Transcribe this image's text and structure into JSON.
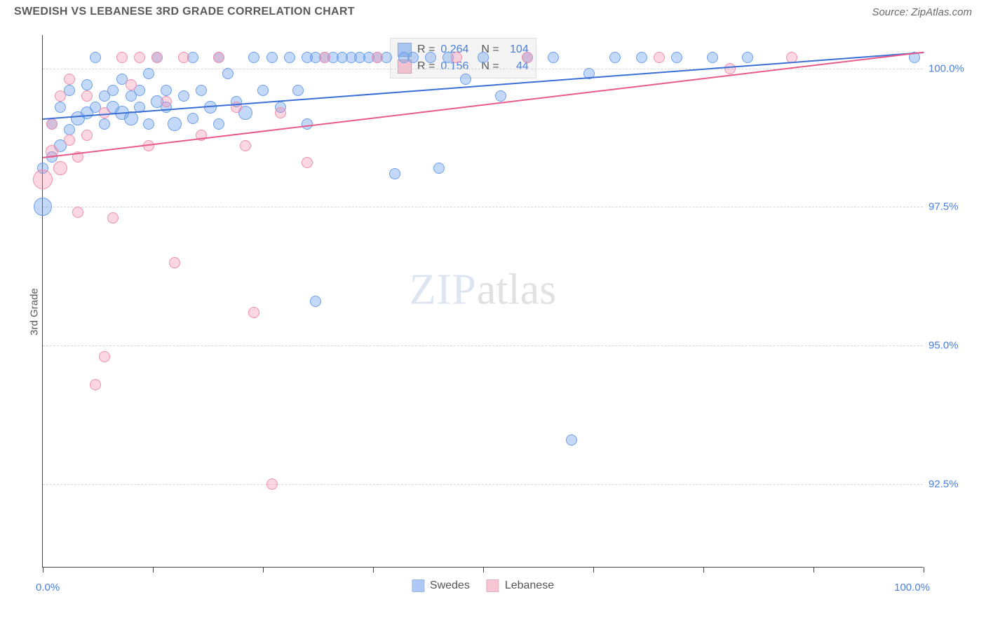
{
  "header": {
    "title": "SWEDISH VS LEBANESE 3RD GRADE CORRELATION CHART",
    "source": "Source: ZipAtlas.com"
  },
  "chart": {
    "type": "scatter",
    "background_color": "#ffffff",
    "grid_color": "#d6d6d6",
    "axis_color": "#444444",
    "y_axis_title": "3rd Grade",
    "xlim": [
      0,
      100
    ],
    "ylim": [
      91.0,
      100.6
    ],
    "x_ticks": [
      0,
      12.5,
      25,
      37.5,
      50,
      62.5,
      75,
      87.5,
      100
    ],
    "x_tick_labels": {
      "0": "0.0%",
      "100": "100.0%"
    },
    "y_ticks": [
      92.5,
      95.0,
      97.5,
      100.0
    ],
    "y_tick_labels": {
      "92.5": "92.5%",
      "95.0": "95.0%",
      "97.5": "97.5%",
      "100.0": "100.0%"
    },
    "watermark": {
      "part1": "ZIP",
      "part2": "atlas"
    },
    "series": [
      {
        "name": "Swedes",
        "color_fill": "rgba(108,159,235,0.40)",
        "color_stroke": "#6c9feb",
        "trend_color": "#3b6fd6",
        "trend": {
          "x1": 0,
          "y1": 99.1,
          "x2": 100,
          "y2": 100.3
        },
        "R": "0.264",
        "N": "104",
        "points": [
          {
            "x": 0,
            "y": 97.5,
            "r": 13
          },
          {
            "x": 0,
            "y": 98.2,
            "r": 8
          },
          {
            "x": 1,
            "y": 98.4,
            "r": 8
          },
          {
            "x": 1,
            "y": 99.0,
            "r": 8
          },
          {
            "x": 2,
            "y": 99.3,
            "r": 8
          },
          {
            "x": 2,
            "y": 98.6,
            "r": 9
          },
          {
            "x": 3,
            "y": 99.6,
            "r": 8
          },
          {
            "x": 3,
            "y": 98.9,
            "r": 8
          },
          {
            "x": 4,
            "y": 99.1,
            "r": 10
          },
          {
            "x": 5,
            "y": 99.2,
            "r": 9
          },
          {
            "x": 5,
            "y": 99.7,
            "r": 8
          },
          {
            "x": 6,
            "y": 99.3,
            "r": 8
          },
          {
            "x": 6,
            "y": 100.2,
            "r": 8
          },
          {
            "x": 7,
            "y": 99.5,
            "r": 8
          },
          {
            "x": 7,
            "y": 99.0,
            "r": 8
          },
          {
            "x": 8,
            "y": 99.6,
            "r": 8
          },
          {
            "x": 8,
            "y": 99.3,
            "r": 9
          },
          {
            "x": 9,
            "y": 99.2,
            "r": 10
          },
          {
            "x": 9,
            "y": 99.8,
            "r": 8
          },
          {
            "x": 10,
            "y": 99.1,
            "r": 10
          },
          {
            "x": 10,
            "y": 99.5,
            "r": 8
          },
          {
            "x": 11,
            "y": 99.6,
            "r": 8
          },
          {
            "x": 11,
            "y": 99.3,
            "r": 8
          },
          {
            "x": 12,
            "y": 99.0,
            "r": 8
          },
          {
            "x": 12,
            "y": 99.9,
            "r": 8
          },
          {
            "x": 13,
            "y": 99.4,
            "r": 9
          },
          {
            "x": 13,
            "y": 100.2,
            "r": 8
          },
          {
            "x": 14,
            "y": 99.6,
            "r": 8
          },
          {
            "x": 14,
            "y": 99.3,
            "r": 8
          },
          {
            "x": 15,
            "y": 99.0,
            "r": 10
          },
          {
            "x": 16,
            "y": 99.5,
            "r": 8
          },
          {
            "x": 17,
            "y": 99.1,
            "r": 8
          },
          {
            "x": 17,
            "y": 100.2,
            "r": 8
          },
          {
            "x": 18,
            "y": 99.6,
            "r": 8
          },
          {
            "x": 19,
            "y": 99.3,
            "r": 9
          },
          {
            "x": 20,
            "y": 99.0,
            "r": 8
          },
          {
            "x": 20,
            "y": 100.2,
            "r": 8
          },
          {
            "x": 21,
            "y": 99.9,
            "r": 8
          },
          {
            "x": 22,
            "y": 99.4,
            "r": 8
          },
          {
            "x": 23,
            "y": 99.2,
            "r": 10
          },
          {
            "x": 24,
            "y": 100.2,
            "r": 8
          },
          {
            "x": 25,
            "y": 99.6,
            "r": 8
          },
          {
            "x": 26,
            "y": 100.2,
            "r": 8
          },
          {
            "x": 27,
            "y": 99.3,
            "r": 8
          },
          {
            "x": 28,
            "y": 100.2,
            "r": 8
          },
          {
            "x": 29,
            "y": 99.6,
            "r": 8
          },
          {
            "x": 30,
            "y": 100.2,
            "r": 8
          },
          {
            "x": 30,
            "y": 99.0,
            "r": 8
          },
          {
            "x": 31,
            "y": 100.2,
            "r": 8
          },
          {
            "x": 31,
            "y": 95.8,
            "r": 8
          },
          {
            "x": 32,
            "y": 100.2,
            "r": 8
          },
          {
            "x": 33,
            "y": 100.2,
            "r": 8
          },
          {
            "x": 34,
            "y": 100.2,
            "r": 8
          },
          {
            "x": 35,
            "y": 100.2,
            "r": 8
          },
          {
            "x": 36,
            "y": 100.2,
            "r": 8
          },
          {
            "x": 37,
            "y": 100.2,
            "r": 8
          },
          {
            "x": 38,
            "y": 100.2,
            "r": 8
          },
          {
            "x": 39,
            "y": 100.2,
            "r": 8
          },
          {
            "x": 40,
            "y": 98.1,
            "r": 8
          },
          {
            "x": 41,
            "y": 100.2,
            "r": 8
          },
          {
            "x": 42,
            "y": 100.2,
            "r": 8
          },
          {
            "x": 44,
            "y": 100.2,
            "r": 8
          },
          {
            "x": 45,
            "y": 98.2,
            "r": 8
          },
          {
            "x": 46,
            "y": 100.2,
            "r": 8
          },
          {
            "x": 48,
            "y": 99.8,
            "r": 8
          },
          {
            "x": 50,
            "y": 100.2,
            "r": 8
          },
          {
            "x": 52,
            "y": 99.5,
            "r": 8
          },
          {
            "x": 55,
            "y": 100.2,
            "r": 8
          },
          {
            "x": 58,
            "y": 100.2,
            "r": 8
          },
          {
            "x": 60,
            "y": 93.3,
            "r": 8
          },
          {
            "x": 62,
            "y": 99.9,
            "r": 8
          },
          {
            "x": 65,
            "y": 100.2,
            "r": 8
          },
          {
            "x": 68,
            "y": 100.2,
            "r": 8
          },
          {
            "x": 72,
            "y": 100.2,
            "r": 8
          },
          {
            "x": 76,
            "y": 100.2,
            "r": 8
          },
          {
            "x": 80,
            "y": 100.2,
            "r": 8
          },
          {
            "x": 99,
            "y": 100.2,
            "r": 8
          }
        ]
      },
      {
        "name": "Lebanese",
        "color_fill": "rgba(240,140,170,0.35)",
        "color_stroke": "#ef8fb0",
        "trend_color": "#e85a8a",
        "trend": {
          "x1": 0,
          "y1": 98.4,
          "x2": 100,
          "y2": 100.3
        },
        "R": "0.156",
        "N": "44",
        "points": [
          {
            "x": 0,
            "y": 98.0,
            "r": 14
          },
          {
            "x": 1,
            "y": 98.5,
            "r": 9
          },
          {
            "x": 1,
            "y": 99.0,
            "r": 8
          },
          {
            "x": 2,
            "y": 98.2,
            "r": 10
          },
          {
            "x": 2,
            "y": 99.5,
            "r": 8
          },
          {
            "x": 3,
            "y": 98.7,
            "r": 8
          },
          {
            "x": 3,
            "y": 99.8,
            "r": 8
          },
          {
            "x": 4,
            "y": 98.4,
            "r": 8
          },
          {
            "x": 4,
            "y": 97.4,
            "r": 8
          },
          {
            "x": 5,
            "y": 99.5,
            "r": 8
          },
          {
            "x": 5,
            "y": 98.8,
            "r": 8
          },
          {
            "x": 6,
            "y": 94.3,
            "r": 8
          },
          {
            "x": 7,
            "y": 94.8,
            "r": 8
          },
          {
            "x": 7,
            "y": 99.2,
            "r": 8
          },
          {
            "x": 8,
            "y": 97.3,
            "r": 8
          },
          {
            "x": 9,
            "y": 100.2,
            "r": 8
          },
          {
            "x": 10,
            "y": 99.7,
            "r": 8
          },
          {
            "x": 11,
            "y": 100.2,
            "r": 8
          },
          {
            "x": 12,
            "y": 98.6,
            "r": 8
          },
          {
            "x": 13,
            "y": 100.2,
            "r": 8
          },
          {
            "x": 14,
            "y": 99.4,
            "r": 8
          },
          {
            "x": 15,
            "y": 96.5,
            "r": 8
          },
          {
            "x": 16,
            "y": 100.2,
            "r": 8
          },
          {
            "x": 18,
            "y": 98.8,
            "r": 8
          },
          {
            "x": 20,
            "y": 100.2,
            "r": 8
          },
          {
            "x": 22,
            "y": 99.3,
            "r": 8
          },
          {
            "x": 23,
            "y": 98.6,
            "r": 8
          },
          {
            "x": 24,
            "y": 95.6,
            "r": 8
          },
          {
            "x": 26,
            "y": 92.5,
            "r": 8
          },
          {
            "x": 27,
            "y": 99.2,
            "r": 8
          },
          {
            "x": 30,
            "y": 98.3,
            "r": 8
          },
          {
            "x": 32,
            "y": 100.2,
            "r": 8
          },
          {
            "x": 38,
            "y": 100.2,
            "r": 8
          },
          {
            "x": 47,
            "y": 100.2,
            "r": 8
          },
          {
            "x": 55,
            "y": 100.2,
            "r": 8
          },
          {
            "x": 70,
            "y": 100.2,
            "r": 8
          },
          {
            "x": 78,
            "y": 100.0,
            "r": 8
          },
          {
            "x": 85,
            "y": 100.2,
            "r": 8
          }
        ]
      }
    ]
  },
  "legend_box": {
    "rows": [
      {
        "swatch": "rgba(108,159,235,0.55)",
        "R_label": "R =",
        "R": "0.264",
        "N_label": "N =",
        "N": "104"
      },
      {
        "swatch": "rgba(240,140,170,0.50)",
        "R_label": "R =",
        "R": "0.156",
        "N_label": "N =",
        "N": "44"
      }
    ]
  },
  "bottom_legend": {
    "items": [
      {
        "swatch": "rgba(108,159,235,0.55)",
        "label": "Swedes"
      },
      {
        "swatch": "rgba(240,140,170,0.50)",
        "label": "Lebanese"
      }
    ]
  }
}
